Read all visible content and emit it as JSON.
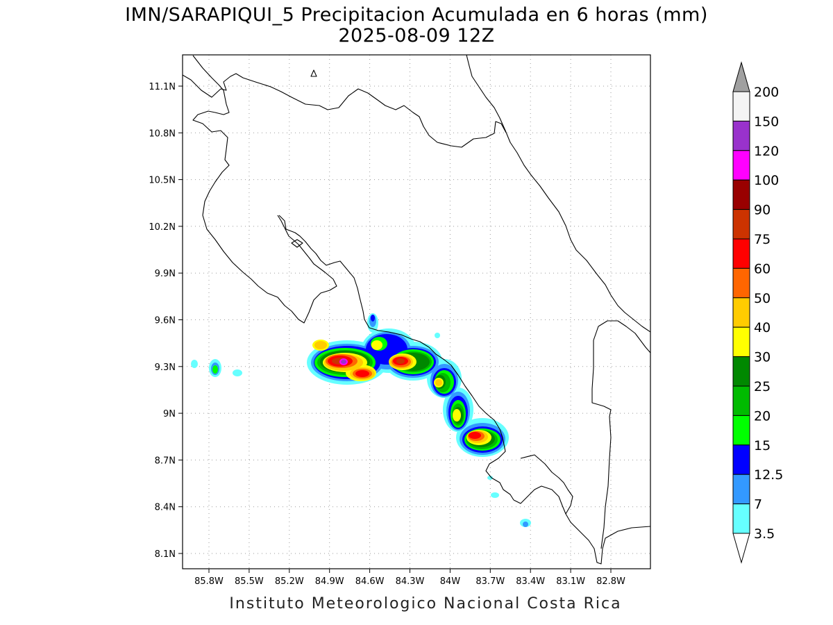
{
  "title": {
    "line1": "IMN/SARAPIQUI_5 Precipitacion Acumulada en 6 horas (mm)",
    "line2": "2025-08-09 12Z"
  },
  "axes": {
    "lat_labels": [
      "11.1N",
      "10.8N",
      "10.5N",
      "10.2N",
      "9.9N",
      "9.6N",
      "9.3N",
      "9N",
      "8.7N",
      "8.4N",
      "8.1N"
    ],
    "lon_labels": [
      "85.8W",
      "85.5W",
      "85.2W",
      "84.9W",
      "84.6W",
      "84.3W",
      "84W",
      "83.7W",
      "83.4W",
      "83.1W",
      "82.8W"
    ]
  },
  "colorbar": {
    "labels": [
      "200",
      "150",
      "120",
      "100",
      "90",
      "75",
      "60",
      "50",
      "40",
      "30",
      "25",
      "20",
      "15",
      "12.5",
      "7",
      "3.5"
    ],
    "colors": {
      "above_max": "#a0a0a0",
      "c150_200": "#f4f4f4",
      "c120_150": "#9932cc",
      "c100_120": "#ff00ff",
      "c90_100": "#990000",
      "c75_90": "#cc3300",
      "c60_75": "#ff0000",
      "c50_60": "#ff6600",
      "c40_50": "#ffcc00",
      "c30_40": "#ffff00",
      "c25_30": "#008800",
      "c20_25": "#00bb00",
      "c15_20": "#00ff00",
      "c12_15": "#0000ff",
      "c7_12": "#3399ff",
      "c3_7": "#66ffff"
    }
  },
  "footer": "Instituto Meteorologico Nacional Costa Rica"
}
